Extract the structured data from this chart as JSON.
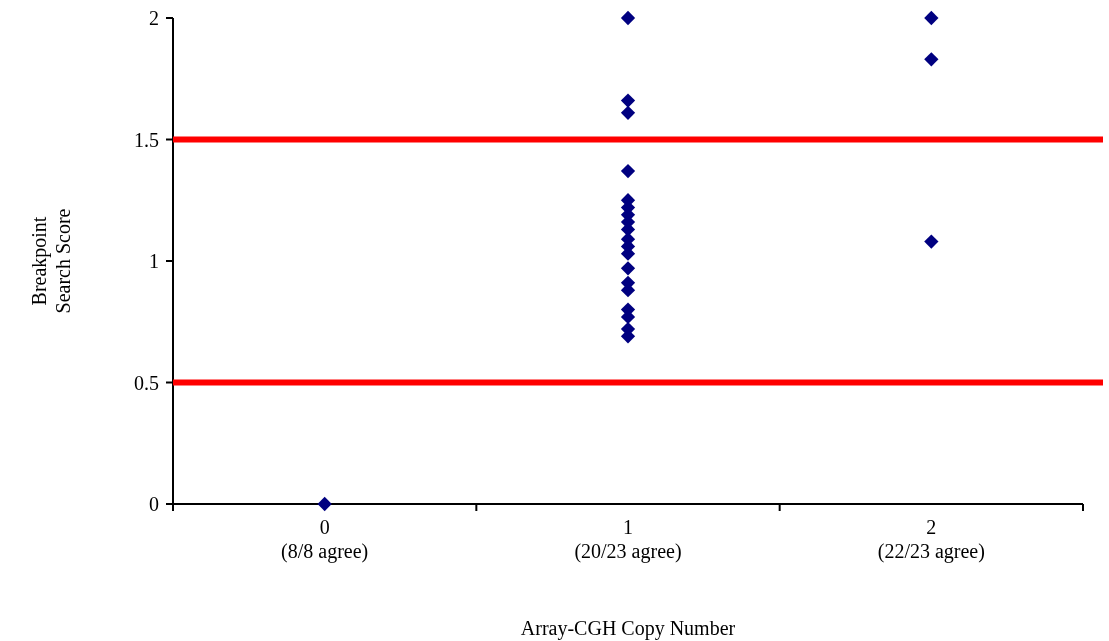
{
  "chart_data": {
    "type": "scatter",
    "xlabel": "Array-CGH Copy Number",
    "ylabel": "Breakpoint\nSearch Score",
    "categories": [
      "0\n(8/8 agree)",
      "1\n(20/23 agree)",
      "2\n(22/23 agree)"
    ],
    "ylim": [
      0,
      2
    ],
    "yticks": [
      0,
      0.5,
      1,
      1.5,
      2
    ],
    "marker": "diamond",
    "series": [
      {
        "color": "#000080",
        "x": [
          "0\n(8/8 agree)",
          "1\n(20/23 agree)",
          "1\n(20/23 agree)",
          "1\n(20/23 agree)",
          "1\n(20/23 agree)",
          "1\n(20/23 agree)",
          "1\n(20/23 agree)",
          "1\n(20/23 agree)",
          "1\n(20/23 agree)",
          "1\n(20/23 agree)",
          "1\n(20/23 agree)",
          "1\n(20/23 agree)",
          "1\n(20/23 agree)",
          "1\n(20/23 agree)",
          "1\n(20/23 agree)",
          "1\n(20/23 agree)",
          "1\n(20/23 agree)",
          "1\n(20/23 agree)",
          "1\n(20/23 agree)",
          "1\n(20/23 agree)",
          "2\n(22/23 agree)",
          "2\n(22/23 agree)",
          "2\n(22/23 agree)"
        ],
        "values": [
          0,
          2,
          1.66,
          1.61,
          1.37,
          1.25,
          1.22,
          1.19,
          1.16,
          1.13,
          1.09,
          1.06,
          1.03,
          0.97,
          0.91,
          0.88,
          0.8,
          0.77,
          0.72,
          0.69,
          2,
          1.83,
          1.08
        ]
      }
    ],
    "ref_lines": [
      {
        "axis": "y",
        "value": 1.5,
        "color": "#ff0000"
      },
      {
        "axis": "y",
        "value": 0.5,
        "color": "#ff0000"
      }
    ]
  }
}
